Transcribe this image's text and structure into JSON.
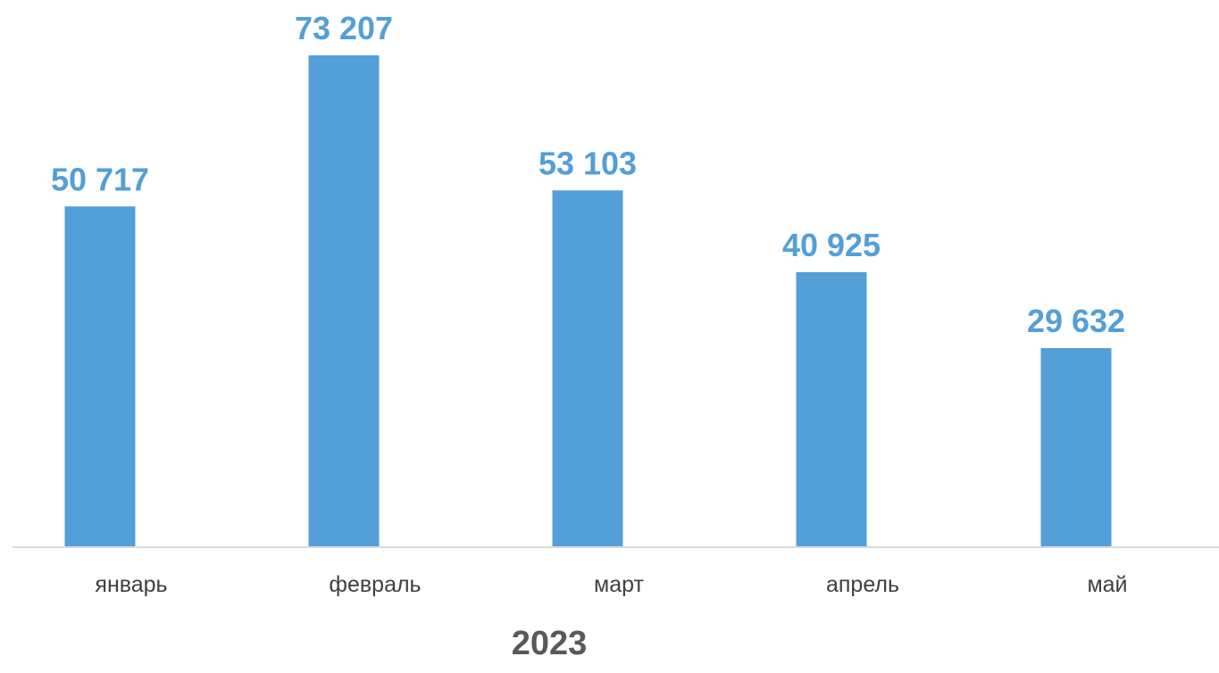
{
  "chart_data": {
    "type": "bar",
    "categories": [
      "январь",
      "февраль",
      "март",
      "апрель",
      "май"
    ],
    "values": [
      50717,
      73207,
      53103,
      40925,
      29632
    ],
    "value_labels": [
      "50 717",
      "73 207",
      "53 103",
      "40 925",
      "29 632"
    ],
    "xlabel": "2023",
    "ylabel": "",
    "ylim": [
      0,
      73207
    ],
    "grid": false,
    "legend": "none"
  },
  "colors": {
    "bar": "#539FD7",
    "value_label": "#539FD7",
    "axis_line": "#D9D9D9"
  }
}
